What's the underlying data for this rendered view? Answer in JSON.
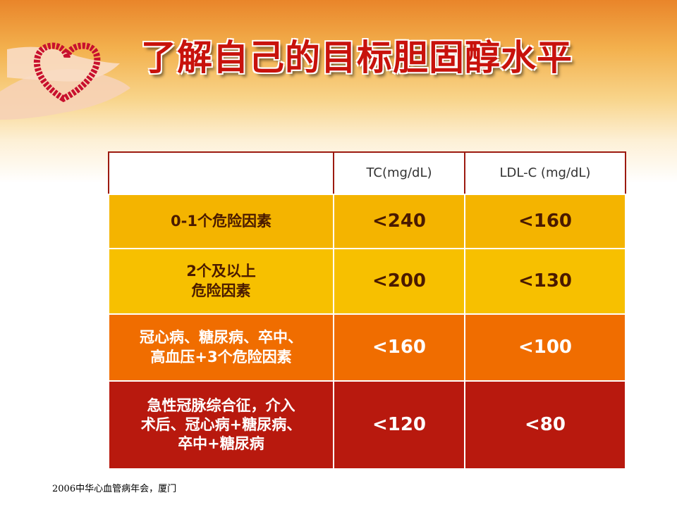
{
  "header": {
    "title": "了解自己的目标胆固醇水平"
  },
  "table": {
    "columns": [
      "TC(mg/dL)",
      "LDL-C (mg/dL)"
    ],
    "rows": [
      {
        "label": [
          "0-1个危险因素"
        ],
        "tc": "<240",
        "ldl": "<160"
      },
      {
        "label": [
          "2个及以上",
          "危险因素"
        ],
        "tc": "<200",
        "ldl": "<130"
      },
      {
        "label": [
          "冠心病、糖尿病、卒中、",
          "高血压+3个危险因素"
        ],
        "tc": "<160",
        "ldl": "<100"
      },
      {
        "label": [
          "急性冠脉综合征，介入",
          "术后、冠心病+糖尿病、",
          "卒中+糖尿病"
        ],
        "tc": "<120",
        "ldl": "<80"
      }
    ]
  },
  "footer": {
    "source": "2006中华心血管病年会，厦门"
  }
}
